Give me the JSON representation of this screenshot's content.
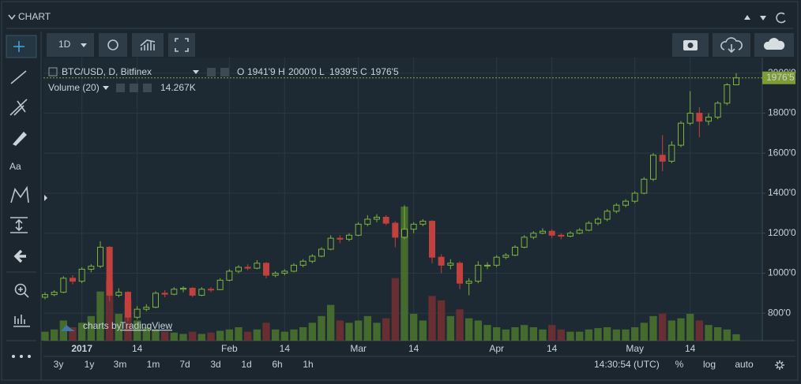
{
  "header": {
    "title": "CHART"
  },
  "toolbar": {
    "interval": "1D"
  },
  "left_tools": {
    "text_tool": "Aa"
  },
  "chart_data": {
    "type": "candlestick",
    "symbol": "BTC/USD, D, Bitfinex",
    "ohlc": [
      {
        "key": "O",
        "value": "1941'9"
      },
      {
        "key": "H",
        "value": "2000'0"
      },
      {
        "key": "L",
        "value": "1939'5"
      },
      {
        "key": "C",
        "value": "1976'5"
      }
    ],
    "volume_title": "Volume (20)",
    "volume_last": "14.267K",
    "watermark_prefix": "charts by",
    "watermark_brand": "TradingView",
    "categories": [
      null,
      null,
      null,
      null,
      "2017",
      null,
      null,
      null,
      null,
      null,
      "14",
      null,
      null,
      null,
      null,
      null,
      null,
      null,
      null,
      null,
      "Feb",
      null,
      null,
      null,
      null,
      null,
      "14",
      null,
      null,
      null,
      null,
      null,
      null,
      null,
      "Mar",
      null,
      null,
      null,
      null,
      null,
      "14",
      null,
      null,
      null,
      null,
      null,
      null,
      null,
      null,
      "Apr",
      null,
      null,
      null,
      null,
      null,
      "14",
      null,
      null,
      null,
      null,
      null,
      null,
      null,
      null,
      "May",
      null,
      null,
      null,
      null,
      null,
      "14",
      null,
      null,
      null,
      null,
      null
    ],
    "candles": [
      [
        880,
        905,
        870,
        893
      ],
      [
        893,
        915,
        885,
        905
      ],
      [
        905,
        985,
        900,
        975
      ],
      [
        975,
        990,
        945,
        960
      ],
      [
        960,
        1030,
        950,
        1020
      ],
      [
        1020,
        1045,
        1005,
        1035
      ],
      [
        1035,
        1160,
        1025,
        1130
      ],
      [
        1130,
        1135,
        860,
        890
      ],
      [
        890,
        925,
        880,
        905
      ],
      [
        905,
        910,
        760,
        780
      ],
      [
        780,
        835,
        770,
        820
      ],
      [
        820,
        845,
        810,
        830
      ],
      [
        830,
        910,
        825,
        900
      ],
      [
        900,
        915,
        880,
        895
      ],
      [
        895,
        930,
        890,
        920
      ],
      [
        920,
        935,
        905,
        925
      ],
      [
        925,
        930,
        880,
        890
      ],
      [
        890,
        930,
        885,
        920
      ],
      [
        920,
        930,
        905,
        918
      ],
      [
        918,
        975,
        915,
        965
      ],
      [
        965,
        1020,
        960,
        1010
      ],
      [
        1010,
        1040,
        1000,
        1030
      ],
      [
        1030,
        1045,
        1015,
        1025
      ],
      [
        1025,
        1065,
        1020,
        1050
      ],
      [
        1050,
        1055,
        975,
        990
      ],
      [
        990,
        1010,
        980,
        1000
      ],
      [
        1000,
        1020,
        990,
        1010
      ],
      [
        1010,
        1050,
        1005,
        1040
      ],
      [
        1040,
        1070,
        1030,
        1060
      ],
      [
        1060,
        1095,
        1050,
        1085
      ],
      [
        1085,
        1130,
        1080,
        1120
      ],
      [
        1120,
        1190,
        1115,
        1175
      ],
      [
        1175,
        1190,
        1150,
        1170
      ],
      [
        1170,
        1200,
        1160,
        1190
      ],
      [
        1190,
        1255,
        1185,
        1245
      ],
      [
        1245,
        1290,
        1235,
        1270
      ],
      [
        1270,
        1295,
        1255,
        1280
      ],
      [
        1280,
        1290,
        1240,
        1250
      ],
      [
        1250,
        1260,
        1130,
        1180
      ],
      [
        1180,
        1340,
        1170,
        1220
      ],
      [
        1220,
        1255,
        1200,
        1245
      ],
      [
        1245,
        1270,
        1235,
        1260
      ],
      [
        1260,
        1265,
        1050,
        1080
      ],
      [
        1080,
        1095,
        1000,
        1040
      ],
      [
        1040,
        1070,
        1020,
        1050
      ],
      [
        1050,
        1060,
        920,
        950
      ],
      [
        950,
        975,
        890,
        960
      ],
      [
        960,
        1060,
        950,
        1040
      ],
      [
        1040,
        1055,
        1020,
        1040
      ],
      [
        1040,
        1090,
        1030,
        1080
      ],
      [
        1080,
        1100,
        1070,
        1090
      ],
      [
        1090,
        1140,
        1085,
        1130
      ],
      [
        1130,
        1190,
        1125,
        1180
      ],
      [
        1180,
        1210,
        1170,
        1200
      ],
      [
        1200,
        1225,
        1195,
        1210
      ],
      [
        1210,
        1220,
        1175,
        1190
      ],
      [
        1190,
        1200,
        1170,
        1185
      ],
      [
        1185,
        1210,
        1180,
        1200
      ],
      [
        1200,
        1225,
        1195,
        1215
      ],
      [
        1215,
        1260,
        1210,
        1250
      ],
      [
        1250,
        1280,
        1240,
        1270
      ],
      [
        1270,
        1320,
        1260,
        1310
      ],
      [
        1310,
        1350,
        1300,
        1340
      ],
      [
        1340,
        1370,
        1330,
        1360
      ],
      [
        1360,
        1410,
        1350,
        1400
      ],
      [
        1400,
        1480,
        1395,
        1470
      ],
      [
        1470,
        1600,
        1460,
        1590
      ],
      [
        1590,
        1690,
        1510,
        1560
      ],
      [
        1560,
        1660,
        1550,
        1640
      ],
      [
        1640,
        1760,
        1630,
        1750
      ],
      [
        1750,
        1910,
        1740,
        1800
      ],
      [
        1800,
        1830,
        1680,
        1760
      ],
      [
        1760,
        1800,
        1740,
        1780
      ],
      [
        1780,
        1860,
        1770,
        1850
      ],
      [
        1850,
        1950,
        1840,
        1941.9
      ],
      [
        1941.9,
        2000,
        1939.5,
        1976.5
      ]
    ],
    "volumes": [
      20,
      25,
      45,
      30,
      40,
      55,
      110,
      135,
      60,
      90,
      45,
      30,
      25,
      20,
      18,
      15,
      20,
      15,
      18,
      22,
      25,
      30,
      20,
      25,
      40,
      25,
      20,
      25,
      30,
      40,
      55,
      80,
      45,
      40,
      45,
      55,
      40,
      50,
      140,
      300,
      60,
      45,
      100,
      90,
      55,
      70,
      50,
      45,
      35,
      30,
      25,
      30,
      35,
      30,
      25,
      35,
      25,
      20,
      20,
      25,
      28,
      30,
      25,
      25,
      30,
      40,
      55,
      60,
      45,
      50,
      60,
      45,
      35,
      30,
      25,
      14.267
    ],
    "ylim": [
      663,
      2078
    ],
    "yticks": [
      {
        "value": 800,
        "label": "800'0"
      },
      {
        "value": 1000,
        "label": "1000'0"
      },
      {
        "value": 1200,
        "label": "1200'0"
      },
      {
        "value": 1400,
        "label": "1400'0"
      },
      {
        "value": 1600,
        "label": "1600'0"
      },
      {
        "value": 1800,
        "label": "1800'0"
      },
      {
        "value": 2000,
        "label": "2000'0"
      }
    ],
    "last_label": "1976'5",
    "up_color": "#7fb33c",
    "down_color": "#c2403d",
    "volume_up_color": "#4f7a2c",
    "volume_down_color": "#7a2f31",
    "grid": true
  },
  "footer": {
    "ranges": [
      "3y",
      "1y",
      "3m",
      "1m",
      "7d",
      "3d",
      "1d",
      "6h",
      "1h"
    ],
    "time": "14:30:54 (UTC)",
    "scale_options": [
      "%",
      "log",
      "auto"
    ]
  }
}
